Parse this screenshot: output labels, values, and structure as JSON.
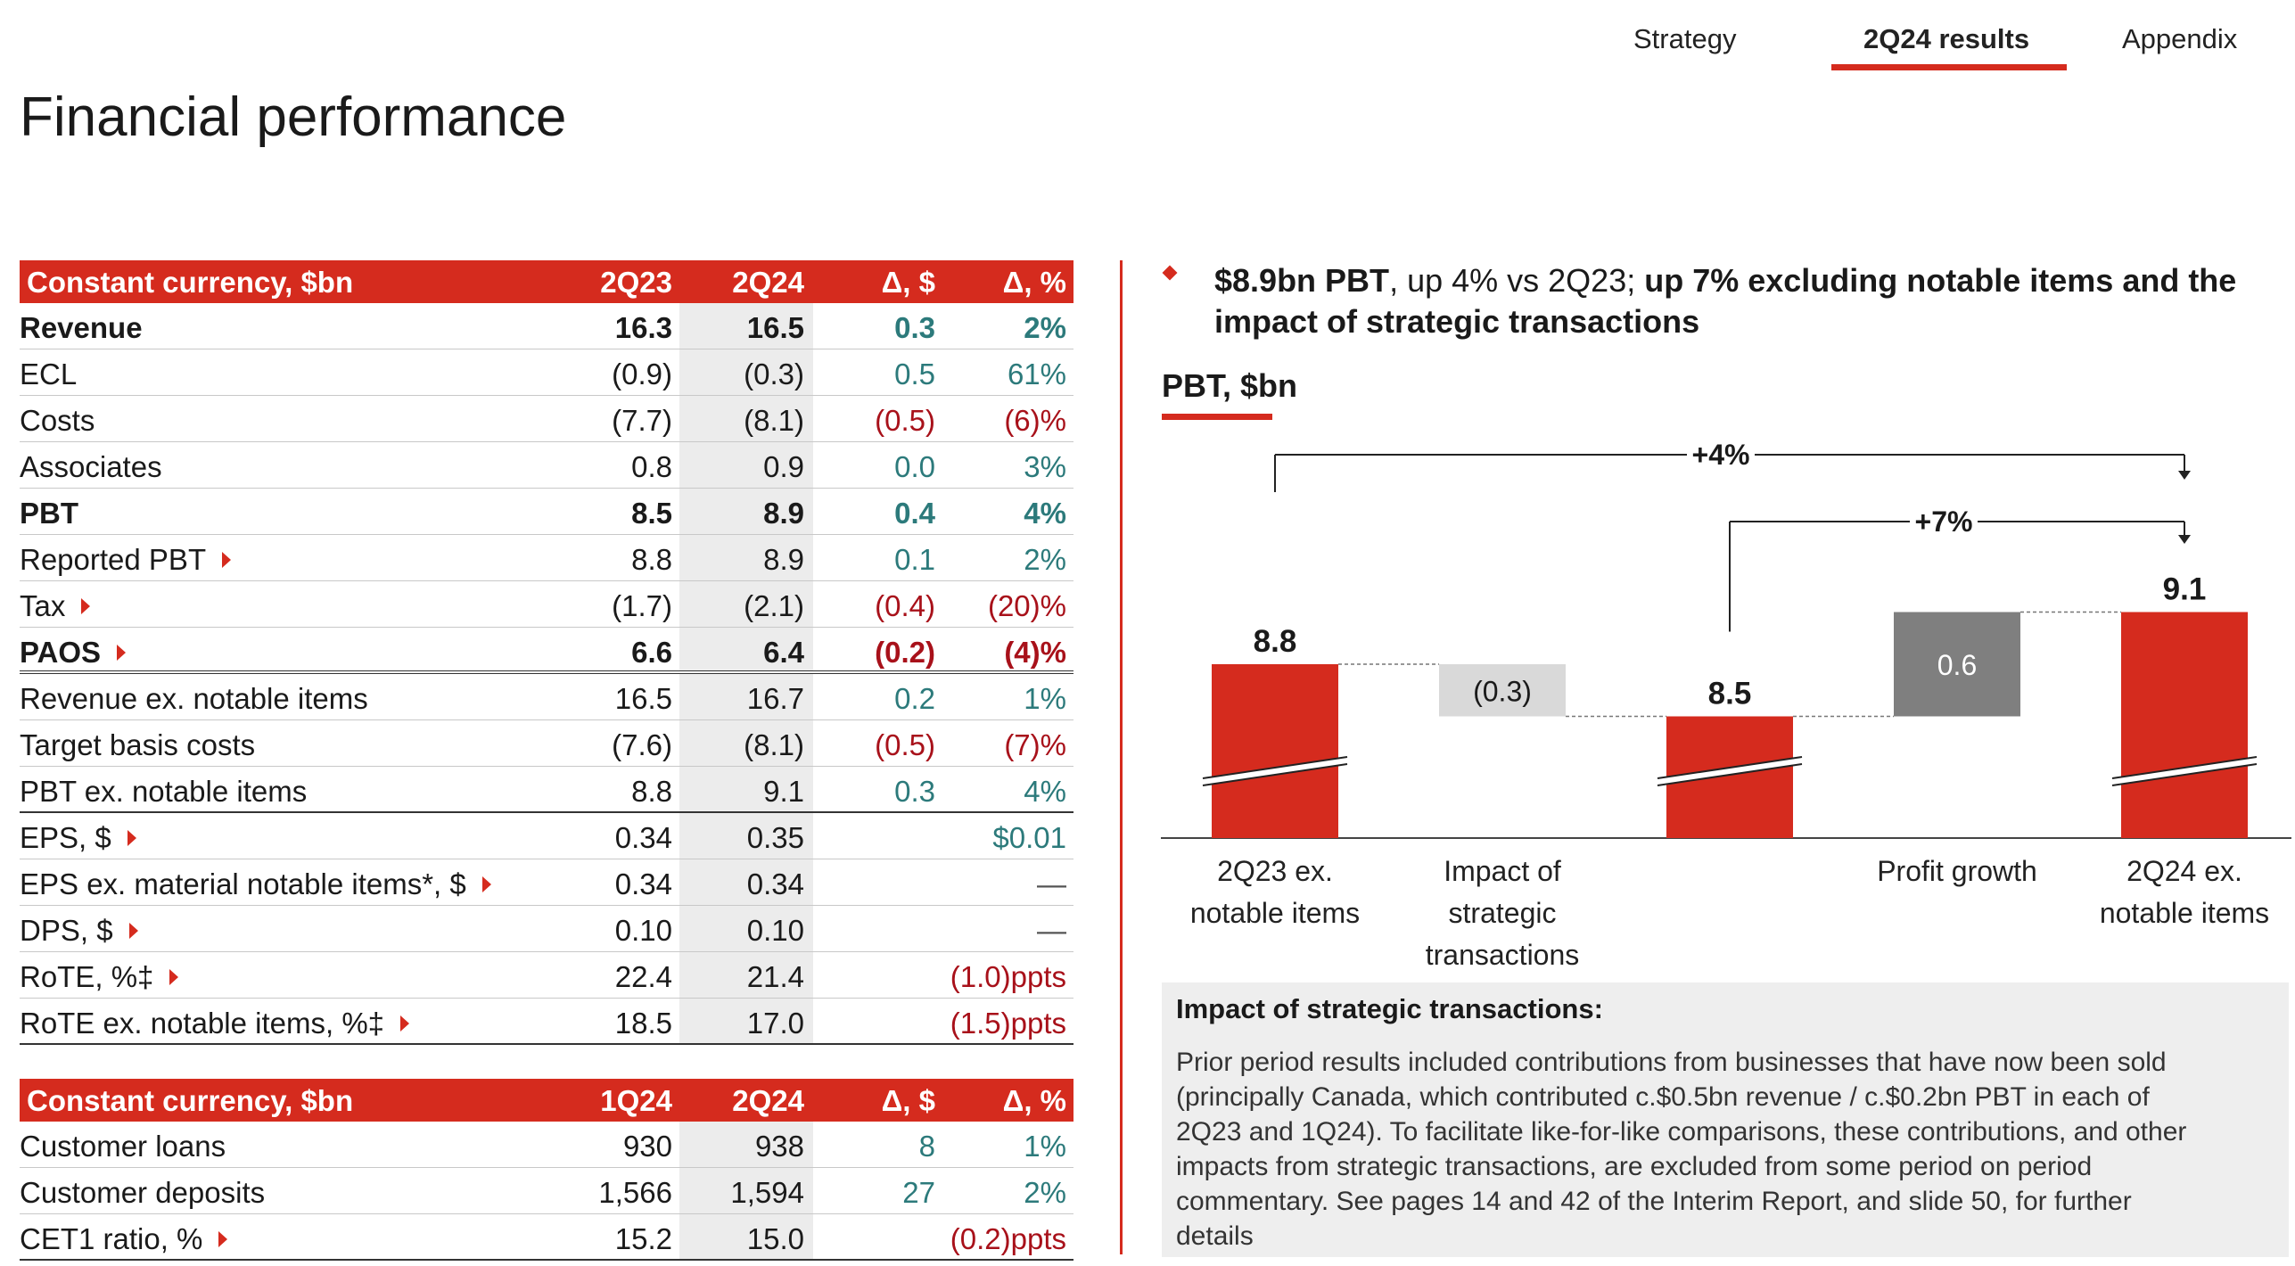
{
  "nav": {
    "tabs": [
      {
        "label": "Strategy",
        "active": false
      },
      {
        "label": "2Q24 results",
        "active": true
      },
      {
        "label": "Appendix",
        "active": false
      }
    ],
    "accent_color": "#d52b1e"
  },
  "page_title": "Financial performance",
  "table1": {
    "headers": [
      "Constant currency, $bn",
      "2Q23",
      "2Q24",
      "Δ, $",
      "Δ, %"
    ],
    "rows": [
      {
        "label": "Revenue",
        "v1": "16.3",
        "v2": "16.5",
        "d1": "0.3",
        "d2": "2%",
        "bold": true,
        "d_style": "pos"
      },
      {
        "label": "ECL",
        "v1": "(0.9)",
        "v2": "(0.3)",
        "d1": "0.5",
        "d2": "61%",
        "d_style": "pos"
      },
      {
        "label": "Costs",
        "v1": "(7.7)",
        "v2": "(8.1)",
        "d1": "(0.5)",
        "d2": "(6)%",
        "d_style": "neg"
      },
      {
        "label": "Associates",
        "v1": "0.8",
        "v2": "0.9",
        "d1": "0.0",
        "d2": "3%",
        "d_style": "pos"
      },
      {
        "label": "PBT",
        "v1": "8.5",
        "v2": "8.9",
        "d1": "0.4",
        "d2": "4%",
        "bold": true,
        "d_style": "pos"
      },
      {
        "label": "Reported PBT",
        "arrow": true,
        "v1": "8.8",
        "v2": "8.9",
        "d1": "0.1",
        "d2": "2%",
        "d_style": "pos"
      },
      {
        "label": "Tax",
        "arrow": true,
        "v1": "(1.7)",
        "v2": "(2.1)",
        "d1": "(0.4)",
        "d2": "(20)%",
        "d_style": "neg"
      },
      {
        "label": "PAOS",
        "arrow": true,
        "v1": "6.6",
        "v2": "6.4",
        "d1": "(0.2)",
        "d2": "(4)%",
        "bold": true,
        "d_style": "neg",
        "sep": "double"
      },
      {
        "label": "Revenue ex. notable items",
        "v1": "16.5",
        "v2": "16.7",
        "d1": "0.2",
        "d2": "1%",
        "d_style": "pos"
      },
      {
        "label": "Target basis costs",
        "v1": "(7.6)",
        "v2": "(8.1)",
        "d1": "(0.5)",
        "d2": "(7)%",
        "d_style": "neg"
      },
      {
        "label": "PBT ex. notable items",
        "v1": "8.8",
        "v2": "9.1",
        "d1": "0.3",
        "d2": "4%",
        "d_style": "pos",
        "sep": "solid"
      },
      {
        "label": "EPS, $",
        "arrow": true,
        "v1": "0.34",
        "v2": "0.35",
        "d1": "",
        "d2": "$0.01",
        "d_style": "pos"
      },
      {
        "label": "EPS ex. material notable items*, $",
        "arrow": true,
        "v1": "0.34",
        "v2": "0.34",
        "d1": "",
        "d2": "—",
        "d_style": "dash"
      },
      {
        "label": "DPS, $",
        "arrow": true,
        "v1": "0.10",
        "v2": "0.10",
        "d1": "",
        "d2": "—",
        "d_style": "dash"
      },
      {
        "label": "RoTE, %‡",
        "arrow": true,
        "v1": "22.4",
        "v2": "21.4",
        "d1": "",
        "d2": "(1.0)ppts",
        "d_style": "neg"
      },
      {
        "label": "RoTE ex. notable items, %‡",
        "arrow": true,
        "v1": "18.5",
        "v2": "17.0",
        "d1": "",
        "d2": "(1.5)ppts",
        "d_style": "neg",
        "sep": "solid"
      }
    ]
  },
  "table2": {
    "headers": [
      "Constant currency, $bn",
      "1Q24",
      "2Q24",
      "Δ, $",
      "Δ, %"
    ],
    "rows": [
      {
        "label": "Customer loans",
        "v1": "930",
        "v2": "938",
        "d1": "8",
        "d2": "1%",
        "d_style": "pos"
      },
      {
        "label": "Customer deposits",
        "v1": "1,566",
        "v2": "1,594",
        "d1": "27",
        "d2": "2%",
        "d_style": "pos"
      },
      {
        "label": "CET1 ratio, %",
        "arrow": true,
        "v1": "15.2",
        "v2": "15.0",
        "d1": "",
        "d2": "(0.2)ppts",
        "d_style": "neg",
        "sep": "solid"
      }
    ]
  },
  "headline": {
    "part1_bold": "$8.9bn PBT",
    "part2": ", up 4% vs 2Q23; ",
    "part3_bold": "up 7% excluding notable items and the impact of strategic transactions"
  },
  "chart_title": "PBT, $bn",
  "chart_data": {
    "type": "bar",
    "subtype": "waterfall",
    "unit": "$bn",
    "categories": [
      "2Q23 ex. notable items",
      "Impact of strategic transactions",
      "",
      "Profit growth",
      "2Q24 ex. notable items"
    ],
    "category_lines": [
      [
        "2Q23 ex.",
        "notable items"
      ],
      [
        "Impact of",
        "strategic",
        "transactions"
      ],
      [],
      [
        "Profit growth"
      ],
      [
        "2Q24 ex.",
        "notable items"
      ]
    ],
    "values": [
      8.8,
      -0.3,
      8.5,
      0.6,
      9.1
    ],
    "value_labels": [
      "8.8",
      "(0.3)",
      "8.5",
      "0.6",
      "9.1"
    ],
    "kinds": [
      "total",
      "delta",
      "total",
      "delta",
      "total"
    ],
    "axis_break": true,
    "colors": {
      "total": "#d52b1e",
      "negative_delta": "#d9d9d9",
      "positive_delta": "#7f7f7f"
    },
    "annotations": [
      {
        "label": "+4%",
        "from": 0,
        "to": 4
      },
      {
        "label": "+7%",
        "from": 2,
        "to": 4
      }
    ]
  },
  "note": {
    "title": "Impact of strategic transactions:",
    "lines": [
      "Prior period results included contributions from businesses that have now been sold",
      "(principally Canada, which contributed c.$0.5bn revenue / c.$0.2bn PBT in each of",
      "2Q23 and 1Q24). To facilitate like-for-like comparisons, these contributions, and other",
      "impacts from strategic transactions, are excluded from some period on period",
      "commentary. See pages 14 and 42 of the Interim Report, and slide 50, for further",
      "details"
    ]
  }
}
